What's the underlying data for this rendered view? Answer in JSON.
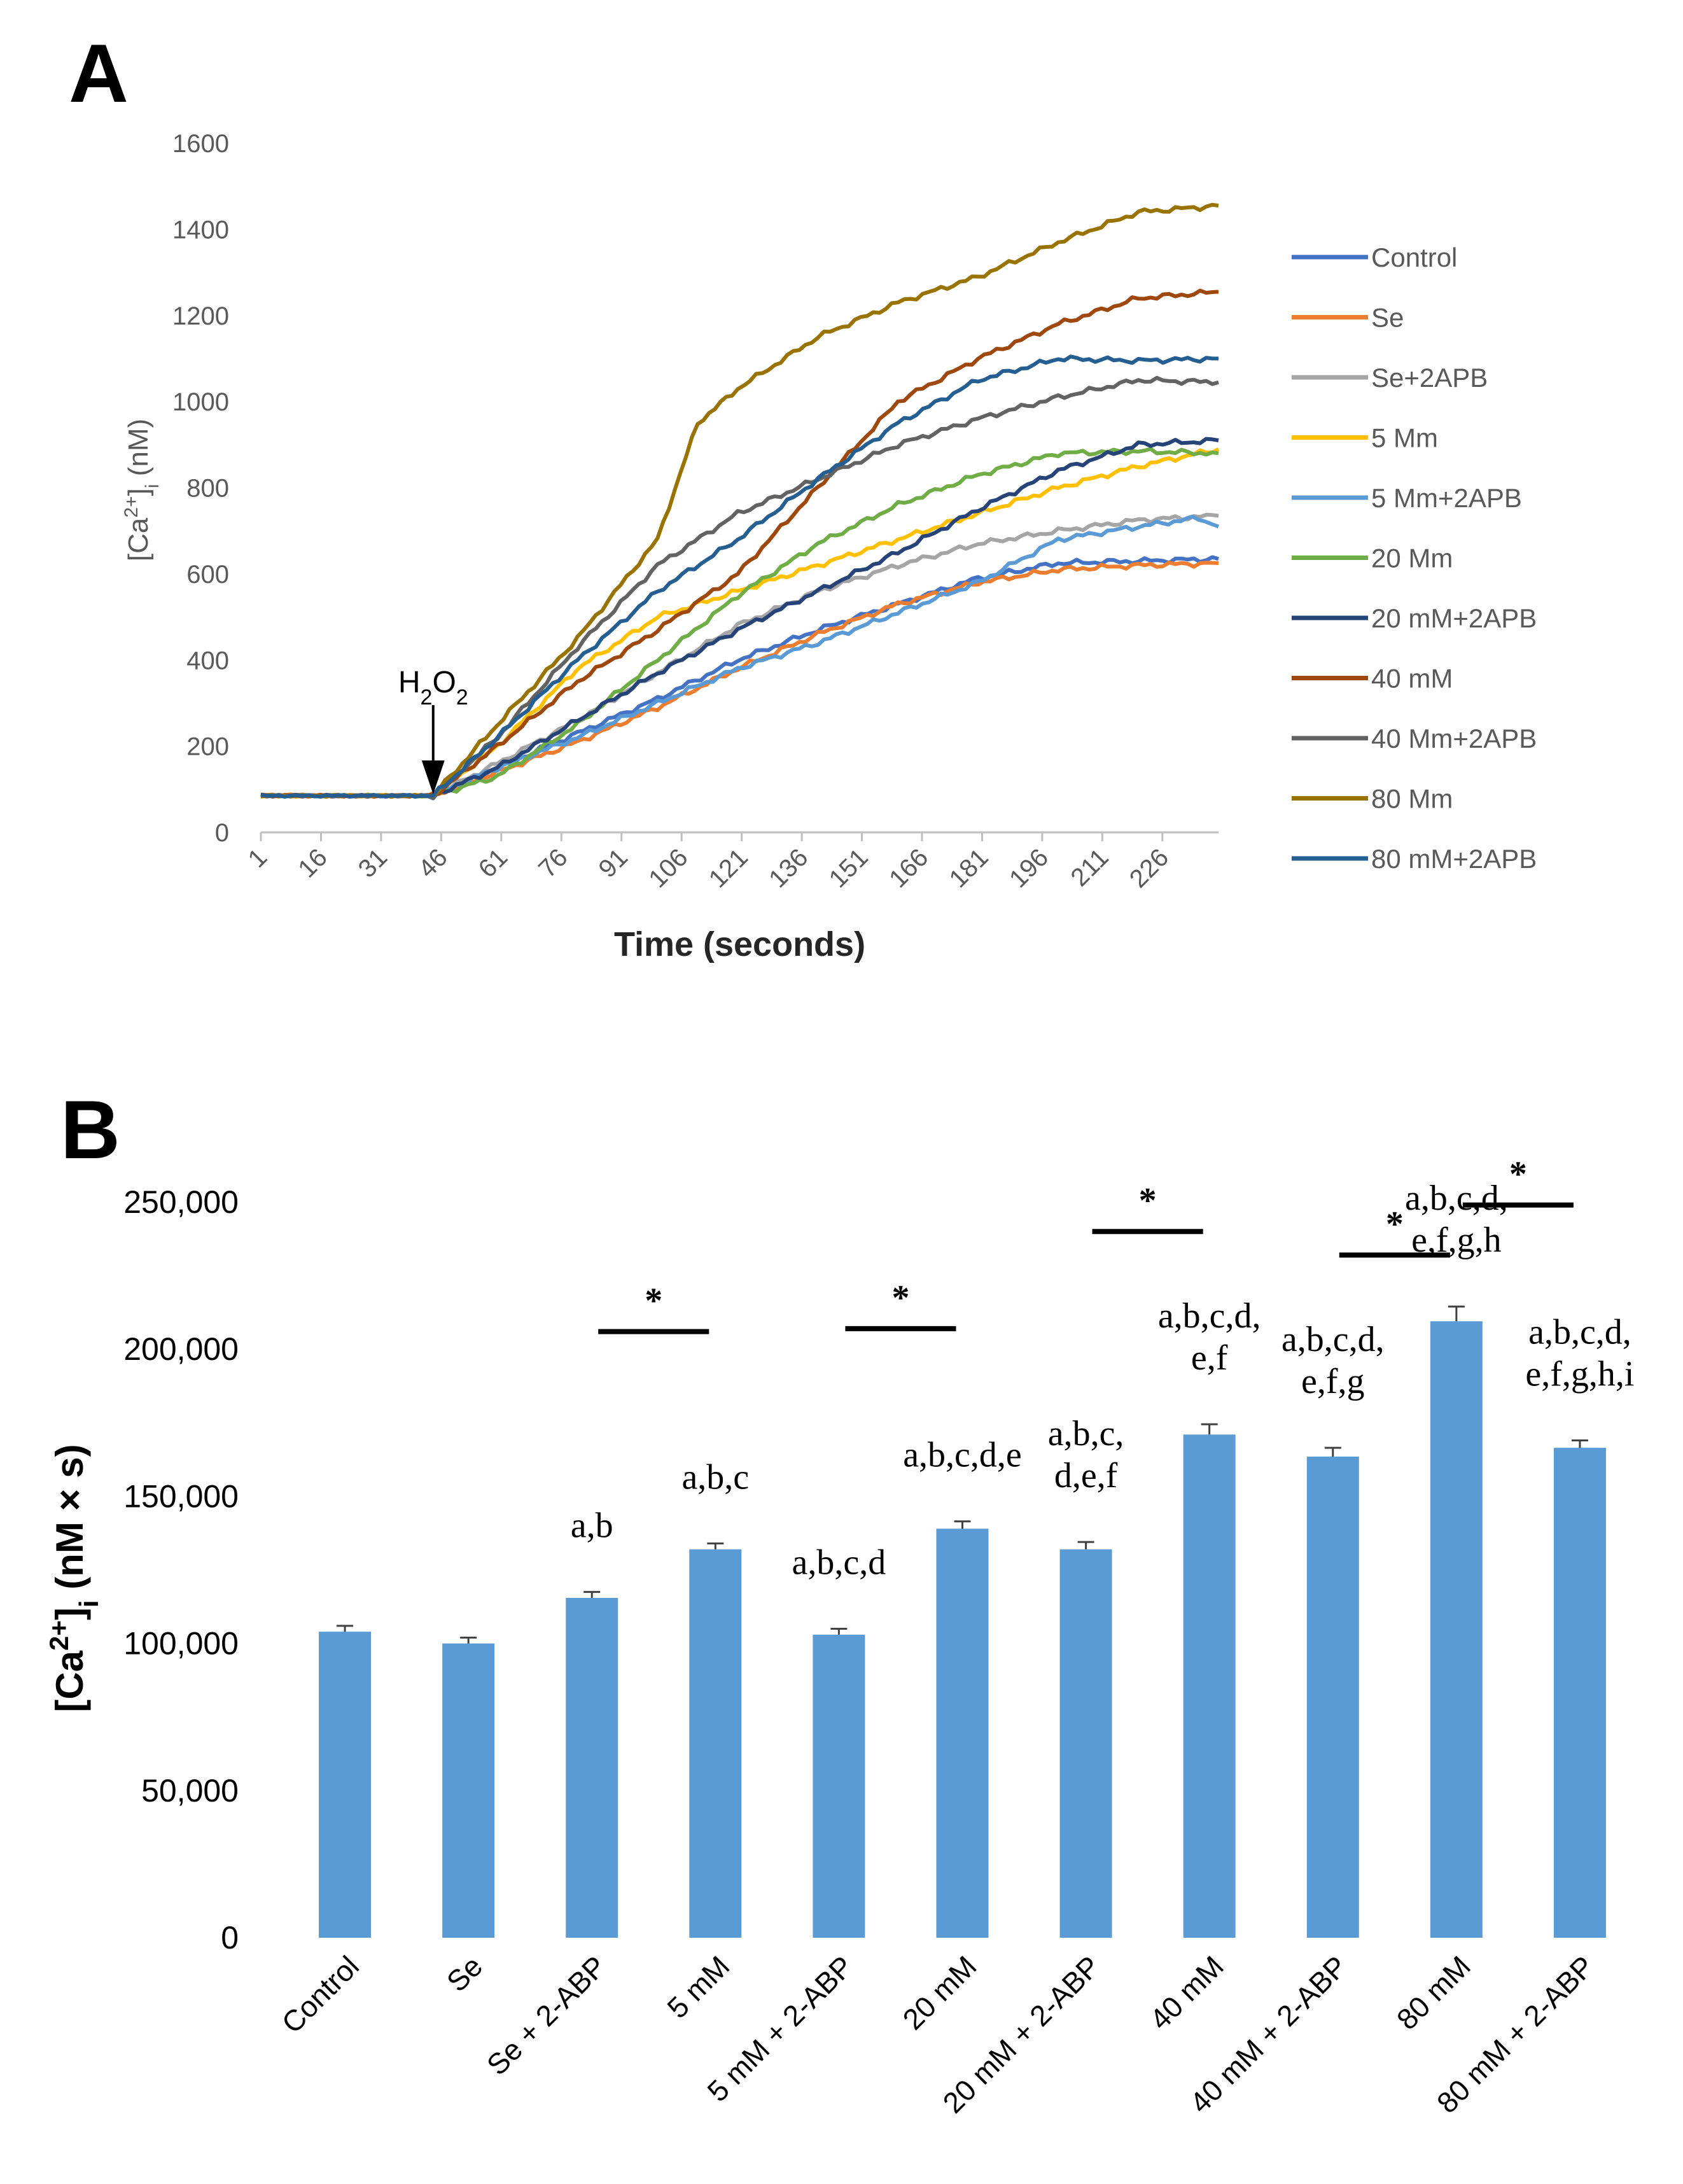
{
  "panels": {
    "a": "A",
    "b": "B"
  },
  "chart_data": [
    {
      "type": "line",
      "panel": "A",
      "title": "",
      "xlabel": "Time (seconds)",
      "ylabel_main": "[Ca",
      "ylabel_sup": "2+",
      "ylabel_bracket": "]",
      "ylabel_sub": "i",
      "ylabel_unit": " (nM)",
      "xlim": [
        1,
        240
      ],
      "ylim": [
        0,
        1600
      ],
      "yticks": [
        0,
        200,
        400,
        600,
        800,
        1000,
        1200,
        1400,
        1600
      ],
      "xticks": [
        "1",
        "16",
        "31",
        "46",
        "61",
        "76",
        "91",
        "106",
        "121",
        "136",
        "151",
        "166",
        "181",
        "196",
        "211",
        "226"
      ],
      "annotation": {
        "label_main": "H",
        "label_sub1": "2",
        "label_mid": "O",
        "label_sub2": "2",
        "x": 44
      },
      "legend_position": "right",
      "series": [
        {
          "name": "Control",
          "color": "#4472C4",
          "points": [
            [
              1,
              85
            ],
            [
              44,
              85
            ],
            [
              60,
              150
            ],
            [
              80,
              230
            ],
            [
              100,
              310
            ],
            [
              120,
              400
            ],
            [
              140,
              470
            ],
            [
              160,
              530
            ],
            [
              180,
              590
            ],
            [
              200,
              625
            ],
            [
              220,
              630
            ],
            [
              240,
              635
            ]
          ]
        },
        {
          "name": "Se",
          "color": "#ED7D31",
          "points": [
            [
              1,
              87
            ],
            [
              44,
              85
            ],
            [
              60,
              140
            ],
            [
              80,
              210
            ],
            [
              100,
              290
            ],
            [
              120,
              380
            ],
            [
              140,
              460
            ],
            [
              160,
              530
            ],
            [
              180,
              580
            ],
            [
              200,
              610
            ],
            [
              220,
              620
            ],
            [
              240,
              625
            ]
          ]
        },
        {
          "name": "Se+2APB",
          "color": "#A5A5A5",
          "points": [
            [
              1,
              85
            ],
            [
              44,
              85
            ],
            [
              60,
              160
            ],
            [
              80,
              260
            ],
            [
              100,
              370
            ],
            [
              120,
              480
            ],
            [
              140,
              560
            ],
            [
              160,
              620
            ],
            [
              180,
              670
            ],
            [
              200,
              700
            ],
            [
              220,
              725
            ],
            [
              240,
              735
            ]
          ]
        },
        {
          "name": "5 Mm",
          "color": "#FFC000",
          "points": [
            [
              1,
              85
            ],
            [
              44,
              85
            ],
            [
              60,
              200
            ],
            [
              80,
              380
            ],
            [
              100,
              500
            ],
            [
              120,
              560
            ],
            [
              140,
              620
            ],
            [
              160,
              680
            ],
            [
              180,
              740
            ],
            [
              200,
              800
            ],
            [
              220,
              850
            ],
            [
              240,
              890
            ]
          ]
        },
        {
          "name": "5 Mm+2APB",
          "color": "#5B9BD5",
          "points": [
            [
              1,
              85
            ],
            [
              44,
              85
            ],
            [
              60,
              150
            ],
            [
              80,
              220
            ],
            [
              100,
              300
            ],
            [
              120,
              380
            ],
            [
              140,
              440
            ],
            [
              160,
              510
            ],
            [
              180,
              580
            ],
            [
              200,
              680
            ],
            [
              220,
              710
            ],
            [
              235,
              730
            ],
            [
              240,
              710
            ]
          ]
        },
        {
          "name": "20 Mm",
          "color": "#70AD47",
          "points": [
            [
              1,
              85
            ],
            [
              44,
              85
            ],
            [
              60,
              130
            ],
            [
              80,
              250
            ],
            [
              100,
              400
            ],
            [
              120,
              550
            ],
            [
              140,
              670
            ],
            [
              160,
              760
            ],
            [
              180,
              830
            ],
            [
              200,
              880
            ],
            [
              220,
              885
            ],
            [
              240,
              880
            ]
          ]
        },
        {
          "name": "20 mM+2APB",
          "color": "#264478",
          "points": [
            [
              1,
              85
            ],
            [
              44,
              85
            ],
            [
              60,
              150
            ],
            [
              80,
              260
            ],
            [
              100,
              370
            ],
            [
              120,
              470
            ],
            [
              140,
              560
            ],
            [
              160,
              650
            ],
            [
              180,
              750
            ],
            [
              200,
              840
            ],
            [
              220,
              900
            ],
            [
              240,
              910
            ]
          ]
        },
        {
          "name": "40 mM",
          "color": "#9E480E",
          "points": [
            [
              1,
              85
            ],
            [
              44,
              85
            ],
            [
              60,
              200
            ],
            [
              80,
              350
            ],
            [
              100,
              470
            ],
            [
              120,
              600
            ],
            [
              140,
              800
            ],
            [
              160,
              1000
            ],
            [
              180,
              1100
            ],
            [
              200,
              1180
            ],
            [
              220,
              1240
            ],
            [
              240,
              1255
            ]
          ]
        },
        {
          "name": "40 Mm+2APB",
          "color": "#636363",
          "points": [
            [
              1,
              85
            ],
            [
              44,
              85
            ],
            [
              60,
              220
            ],
            [
              80,
              430
            ],
            [
              100,
              620
            ],
            [
              120,
              740
            ],
            [
              140,
              820
            ],
            [
              160,
              900
            ],
            [
              180,
              960
            ],
            [
              200,
              1010
            ],
            [
              220,
              1050
            ],
            [
              240,
              1045
            ]
          ]
        },
        {
          "name": "80 Mm",
          "color": "#997300",
          "points": [
            [
              1,
              85
            ],
            [
              44,
              85
            ],
            [
              60,
              250
            ],
            [
              80,
              450
            ],
            [
              100,
              680
            ],
            [
              110,
              950
            ],
            [
              120,
              1030
            ],
            [
              140,
              1150
            ],
            [
              160,
              1230
            ],
            [
              180,
              1290
            ],
            [
              200,
              1370
            ],
            [
              220,
              1440
            ],
            [
              240,
              1455
            ]
          ]
        },
        {
          "name": "80 mM+2APB",
          "color": "#255E91",
          "points": [
            [
              1,
              85
            ],
            [
              44,
              85
            ],
            [
              60,
              220
            ],
            [
              80,
              400
            ],
            [
              100,
              560
            ],
            [
              120,
              680
            ],
            [
              140,
              820
            ],
            [
              160,
              950
            ],
            [
              180,
              1050
            ],
            [
              200,
              1100
            ],
            [
              220,
              1095
            ],
            [
              240,
              1100
            ]
          ]
        }
      ]
    },
    {
      "type": "bar",
      "panel": "B",
      "title": "",
      "xlabel": "",
      "ylabel_main": "[Ca",
      "ylabel_sup": "2+",
      "ylabel_bracket": "]",
      "ylabel_sub": "i",
      "ylabel_unit": " (nM × s)",
      "ylim": [
        0,
        250000
      ],
      "ytick_values": [
        0,
        50000,
        100000,
        150000,
        200000,
        250000
      ],
      "ytick_labels": [
        "0",
        "50,000",
        "100,000",
        "150,000",
        "200,000",
        "250,000"
      ],
      "categories": [
        "Control",
        "Se",
        "Se + 2-ABP",
        "5 mM",
        "5 mM + 2-ABP",
        "20 mM",
        "20 mM + 2-ABP",
        "40 mM",
        "40 mM + 2-ABP",
        "80 mM",
        "80 mM + 2-ABP"
      ],
      "values": [
        104000,
        100000,
        115500,
        132000,
        103000,
        139000,
        132000,
        171000,
        163500,
        209500,
        166500
      ],
      "errors": [
        2000,
        2000,
        2000,
        2000,
        2000,
        2500,
        2500,
        3500,
        3000,
        5000,
        2500
      ],
      "bar_color": "#5B9BD5",
      "significance_labels": [
        {
          "index": 2,
          "lines": [
            "a,b"
          ]
        },
        {
          "index": 3,
          "lines": [
            "a,b,c"
          ]
        },
        {
          "index": 4,
          "lines": [
            "a,b,c,d"
          ]
        },
        {
          "index": 5,
          "lines": [
            "a,b,c,d,e"
          ]
        },
        {
          "index": 6,
          "lines": [
            "a,b,c,",
            "d,e,f"
          ]
        },
        {
          "index": 7,
          "lines": [
            "a,b,c,d,",
            "e,f"
          ]
        },
        {
          "index": 8,
          "lines": [
            "a,b,c,d,",
            "e,f,g"
          ]
        },
        {
          "index": 9,
          "lines": [
            "a,b,c,d,",
            "e,f,g,h"
          ]
        },
        {
          "index": 10,
          "lines": [
            "a,b,c,d,",
            "e,f,g,h,i"
          ]
        }
      ],
      "brackets": [
        {
          "from": 2,
          "to": 3,
          "y": 206000,
          "label": "*"
        },
        {
          "from": 4,
          "to": 5,
          "y": 207000,
          "label": "*"
        },
        {
          "from": 6,
          "to": 7,
          "y": 240000,
          "label": "*"
        },
        {
          "from": 8,
          "to": 9,
          "y": 232000,
          "label": "*"
        },
        {
          "from": 9,
          "to": 10,
          "y": 249000,
          "label": "*"
        }
      ]
    }
  ]
}
